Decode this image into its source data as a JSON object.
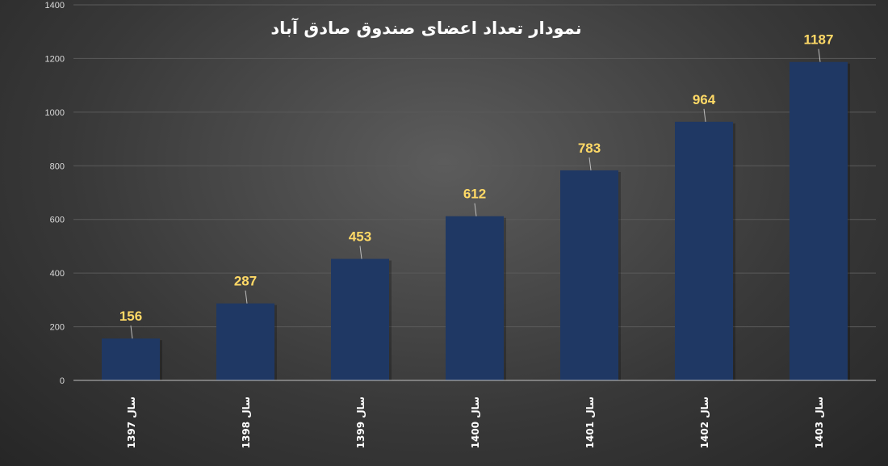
{
  "chart_data": {
    "type": "bar",
    "title": "نمودار تعداد اعضای صندوق صادق آباد",
    "categories": [
      "سال 1397",
      "سال 1398",
      "سال 1399",
      "سال 1400",
      "سال 1401",
      "سال 1402",
      "سال 1403"
    ],
    "values": [
      156,
      287,
      453,
      612,
      783,
      964,
      1187
    ],
    "data_labels": [
      "156",
      "287",
      "453",
      "612",
      "783",
      "964",
      "1187"
    ],
    "ylim": [
      0,
      1400
    ],
    "yticks": [
      0,
      200,
      400,
      600,
      800,
      1000,
      1200,
      1400
    ],
    "ytick_labels": [
      "0",
      "200",
      "400",
      "600",
      "800",
      "1000",
      "1200",
      "1400"
    ],
    "xlabel": "",
    "ylabel": "",
    "grid": true,
    "legend": "none",
    "colors": {
      "bar": "#1f3864",
      "data_label": "#ffd966",
      "gridline": "#5a5a5a",
      "axis": "#bfbfbf",
      "title": "#ffffff"
    }
  }
}
